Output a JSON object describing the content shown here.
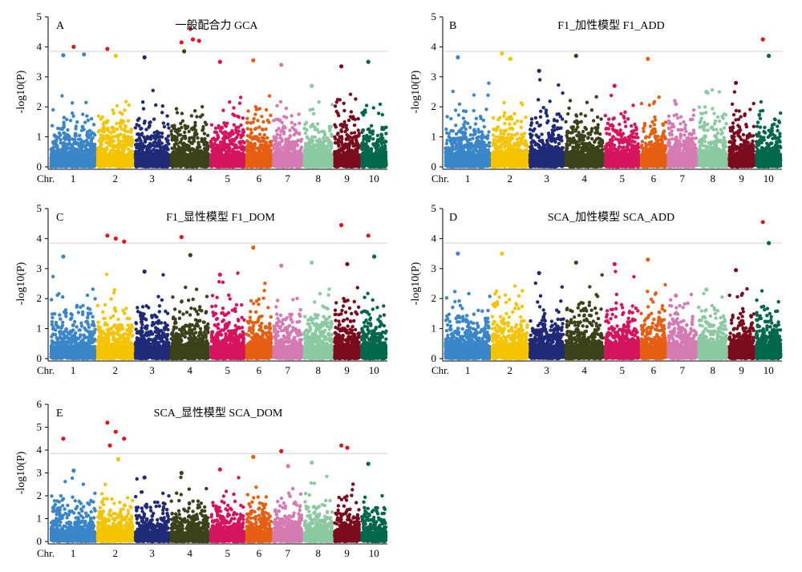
{
  "chromosome_colors": [
    "#3a86c8",
    "#f5c400",
    "#1f2a78",
    "#3b4219",
    "#d6145d",
    "#e55f12",
    "#d67ab3",
    "#8bc9a1",
    "#7a0c1e",
    "#00684a"
  ],
  "chart_data": [
    {
      "type": "scatter",
      "panel": "A",
      "title": "一般配合力 GCA",
      "ylabel": "-log10(P)",
      "xlabel": "Chr.",
      "categories": [
        "1",
        "2",
        "3",
        "4",
        "5",
        "6",
        "7",
        "8",
        "9",
        "10"
      ],
      "ylim": [
        0,
        5
      ],
      "yticks": [
        0,
        1,
        2,
        3,
        4,
        5
      ],
      "threshold": 3.85,
      "series": [
        {
          "values": [
            3.72,
            4.0,
            3.75
          ]
        },
        {
          "values": [
            3.93,
            3.7
          ]
        },
        {
          "values": [
            3.65
          ]
        },
        {
          "values": [
            4.15,
            4.6,
            4.2,
            3.85,
            4.25
          ]
        },
        {
          "values": [
            3.5
          ]
        },
        {
          "values": [
            3.55
          ]
        },
        {
          "values": [
            3.4
          ]
        },
        {
          "values": [
            2.7
          ]
        },
        {
          "values": [
            3.35
          ]
        },
        {
          "values": [
            3.5
          ]
        }
      ]
    },
    {
      "type": "scatter",
      "panel": "B",
      "title": "F1_加性模型 F1_ADD",
      "ylabel": "-log10(P)",
      "xlabel": "Chr.",
      "categories": [
        "1",
        "2",
        "3",
        "4",
        "5",
        "6",
        "7",
        "8",
        "9",
        "10"
      ],
      "ylim": [
        0,
        5
      ],
      "yticks": [
        0,
        1,
        2,
        3,
        4,
        5
      ],
      "threshold": 3.85,
      "series": [
        {
          "values": [
            3.65
          ]
        },
        {
          "values": [
            3.78,
            3.6
          ]
        },
        {
          "values": [
            3.2
          ]
        },
        {
          "values": [
            3.7
          ]
        },
        {
          "values": [
            2.7
          ]
        },
        {
          "values": [
            3.6
          ]
        },
        {
          "values": [
            2.1
          ]
        },
        {
          "values": [
            2.5
          ]
        },
        {
          "values": [
            2.8
          ]
        },
        {
          "values": [
            4.25,
            3.7
          ]
        }
      ]
    },
    {
      "type": "scatter",
      "panel": "C",
      "title": "F1_显性模型 F1_DOM",
      "ylabel": "-log10(P)",
      "xlabel": "Chr.",
      "categories": [
        "1",
        "2",
        "3",
        "4",
        "5",
        "6",
        "7",
        "8",
        "9",
        "10"
      ],
      "ylim": [
        0,
        5
      ],
      "yticks": [
        0,
        1,
        2,
        3,
        4,
        5
      ],
      "threshold": 3.85,
      "series": [
        {
          "values": [
            3.4
          ]
        },
        {
          "values": [
            4.1,
            4.0,
            3.9
          ]
        },
        {
          "values": [
            2.9
          ]
        },
        {
          "values": [
            4.05,
            3.45
          ]
        },
        {
          "values": [
            2.8
          ]
        },
        {
          "values": [
            3.7
          ]
        },
        {
          "values": [
            3.1
          ]
        },
        {
          "values": [
            3.2
          ]
        },
        {
          "values": [
            4.45,
            3.15
          ]
        },
        {
          "values": [
            4.1,
            3.4
          ]
        }
      ]
    },
    {
      "type": "scatter",
      "panel": "D",
      "title": "SCA_加性模型 SCA_ADD",
      "ylabel": "-log10(P)",
      "xlabel": "Chr.",
      "categories": [
        "1",
        "2",
        "3",
        "4",
        "5",
        "6",
        "7",
        "8",
        "9",
        "10"
      ],
      "ylim": [
        0,
        5
      ],
      "yticks": [
        0,
        1,
        2,
        3,
        4,
        5
      ],
      "threshold": 3.85,
      "series": [
        {
          "values": [
            3.5
          ]
        },
        {
          "values": [
            3.5
          ]
        },
        {
          "values": [
            2.85
          ]
        },
        {
          "values": [
            3.2
          ]
        },
        {
          "values": [
            3.15
          ]
        },
        {
          "values": [
            3.3
          ]
        },
        {
          "values": [
            2.1
          ]
        },
        {
          "values": [
            2.3
          ]
        },
        {
          "values": [
            2.95
          ]
        },
        {
          "values": [
            4.55,
            3.85
          ]
        }
      ]
    },
    {
      "type": "scatter",
      "panel": "E",
      "title": "SCA_显性模型 SCA_DOM",
      "ylabel": "-log10(P)",
      "xlabel": "Chr.",
      "categories": [
        "1",
        "2",
        "3",
        "4",
        "5",
        "6",
        "7",
        "8",
        "9",
        "10"
      ],
      "ylim": [
        0,
        6
      ],
      "yticks": [
        0,
        1,
        2,
        3,
        4,
        5,
        6
      ],
      "threshold": 3.85,
      "series": [
        {
          "values": [
            4.5,
            3.1
          ]
        },
        {
          "values": [
            5.2,
            4.8,
            4.5,
            4.2,
            3.6
          ]
        },
        {
          "values": [
            2.8
          ]
        },
        {
          "values": [
            3.0
          ]
        },
        {
          "values": [
            3.15
          ]
        },
        {
          "values": [
            3.7
          ]
        },
        {
          "values": [
            3.95,
            3.3
          ]
        },
        {
          "values": [
            3.45
          ]
        },
        {
          "values": [
            4.2,
            4.1
          ]
        },
        {
          "values": [
            3.4
          ]
        }
      ]
    }
  ]
}
